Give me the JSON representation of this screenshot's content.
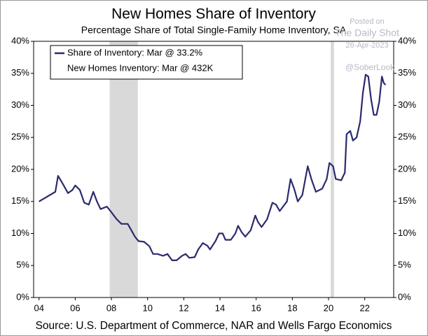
{
  "chart_data": {
    "type": "line",
    "title": "New Homes Share of Inventory",
    "subtitle": "Percentage Share of Total Single-Family Home Inventory, SA",
    "source": "Source: U.S. Department of Commerce, NAR and Wells Fargo Economics",
    "watermarks": [
      "Posted on",
      "The Daily Shot",
      "26-Apr-2023",
      "@SoberLook"
    ],
    "legend_notes": [
      "New Homes Inventory: Mar @ 432K"
    ],
    "x": [
      2004.0,
      2004.9,
      2005.05,
      2005.3,
      2005.6,
      2005.85,
      2006.0,
      2006.25,
      2006.5,
      2006.75,
      2007.0,
      2007.2,
      2007.4,
      2007.75,
      2008.0,
      2008.3,
      2008.55,
      2008.9,
      2009.1,
      2009.3,
      2009.5,
      2009.8,
      2010.1,
      2010.3,
      2010.55,
      2010.85,
      2011.1,
      2011.35,
      2011.6,
      2011.9,
      2012.1,
      2012.3,
      2012.6,
      2012.8,
      2013.05,
      2013.3,
      2013.45,
      2013.75,
      2013.95,
      2014.15,
      2014.3,
      2014.6,
      2014.85,
      2015.0,
      2015.2,
      2015.4,
      2015.7,
      2015.95,
      2016.1,
      2016.3,
      2016.6,
      2016.9,
      2017.1,
      2017.3,
      2017.7,
      2017.9,
      2018.1,
      2018.3,
      2018.55,
      2018.85,
      2019.05,
      2019.3,
      2019.65,
      2019.9,
      2020.05,
      2020.25,
      2020.4,
      2020.7,
      2020.9,
      2021.0,
      2021.2,
      2021.35,
      2021.55,
      2021.75,
      2021.9,
      2022.05,
      2022.2,
      2022.35,
      2022.5,
      2022.65,
      2022.8,
      2022.95,
      2023.05,
      2023.15
    ],
    "series": [
      {
        "name": "Share of Inventory: Mar @ 33.2%",
        "color": "#2b2a6e",
        "values": [
          15,
          16.5,
          19,
          17.8,
          16.3,
          16.8,
          17.5,
          16.8,
          14.8,
          14.5,
          16.5,
          15,
          13.8,
          14.2,
          13.3,
          12.2,
          11.5,
          11.5,
          10.5,
          9.5,
          8.8,
          8.7,
          8,
          6.8,
          6.8,
          6.5,
          6.8,
          5.8,
          5.8,
          6.5,
          6.8,
          6.2,
          6.3,
          7.5,
          8.5,
          8.1,
          7.5,
          8.8,
          10,
          10,
          9,
          9,
          10,
          11.2,
          10.2,
          9.5,
          10.5,
          12.8,
          11.8,
          11,
          12.2,
          14.8,
          14.5,
          13.5,
          15,
          18.5,
          17,
          15,
          16,
          20.5,
          18.5,
          16.5,
          17,
          18.5,
          21,
          20.5,
          18.5,
          18.3,
          19.5,
          25.5,
          26,
          24.5,
          25,
          27.5,
          32,
          34.8,
          34.5,
          31,
          28.5,
          28.5,
          30.5,
          34.5,
          33.5,
          33.2
        ]
      }
    ],
    "recessions": [
      [
        2007.9,
        2009.46
      ],
      [
        2020.12,
        2020.3
      ]
    ],
    "recession_color": "#d9d9d9",
    "xlim": [
      2003.7,
      2023.6
    ],
    "xticks": [
      {
        "value": 2004,
        "label": "04"
      },
      {
        "value": 2006,
        "label": "06"
      },
      {
        "value": 2008,
        "label": "08"
      },
      {
        "value": 2010,
        "label": "10"
      },
      {
        "value": 2012,
        "label": "12"
      },
      {
        "value": 2014,
        "label": "14"
      },
      {
        "value": 2016,
        "label": "16"
      },
      {
        "value": 2018,
        "label": "18"
      },
      {
        "value": 2020,
        "label": "20"
      },
      {
        "value": 2022,
        "label": "22"
      }
    ],
    "ylim": [
      0,
      40
    ],
    "yticks": [
      {
        "value": 0,
        "label": "0%"
      },
      {
        "value": 5,
        "label": "5%"
      },
      {
        "value": 10,
        "label": "10%"
      },
      {
        "value": 15,
        "label": "15%"
      },
      {
        "value": 20,
        "label": "20%"
      },
      {
        "value": 25,
        "label": "25%"
      },
      {
        "value": 30,
        "label": "30%"
      },
      {
        "value": 35,
        "label": "35%"
      },
      {
        "value": 40,
        "label": "40%"
      }
    ],
    "y2lim": [
      0,
      40
    ],
    "y2ticks": [
      {
        "value": 0,
        "label": "0%"
      },
      {
        "value": 5,
        "label": "5%"
      },
      {
        "value": 10,
        "label": "10%"
      },
      {
        "value": 15,
        "label": "15%"
      },
      {
        "value": 20,
        "label": "20%"
      },
      {
        "value": 25,
        "label": "25%"
      },
      {
        "value": 30,
        "label": "30%"
      },
      {
        "value": 35,
        "label": "35%"
      },
      {
        "value": 40,
        "label": "40%"
      }
    ],
    "grid": false
  }
}
